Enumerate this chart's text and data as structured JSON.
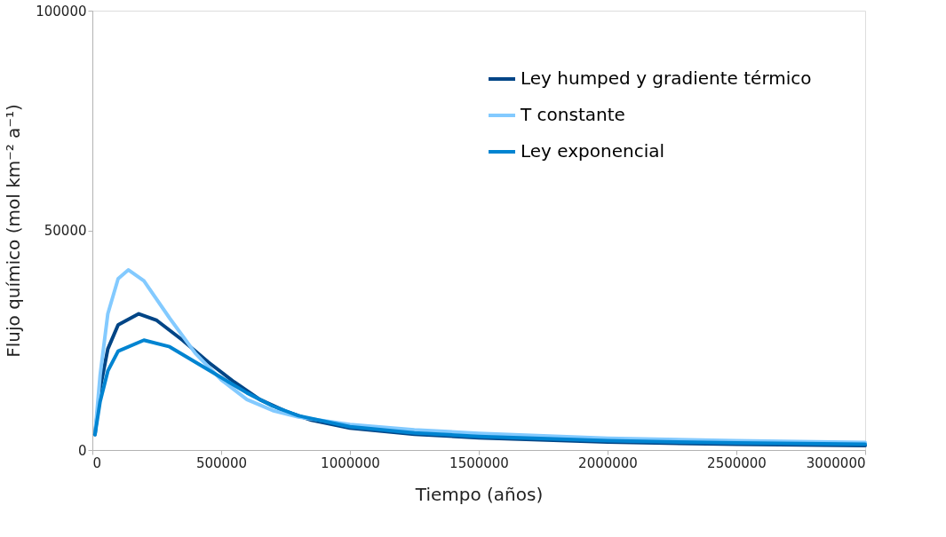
{
  "chart_data": {
    "type": "line",
    "xlabel": "Tiempo (años)",
    "ylabel": "Flujo químico (mol km⁻² a⁻¹)",
    "xlim": [
      0,
      3000000
    ],
    "ylim": [
      0,
      100000
    ],
    "xticks": [
      0,
      500000,
      1000000,
      1500000,
      2000000,
      2500000,
      3000000
    ],
    "yticks": [
      0,
      50000,
      100000
    ],
    "grid": false,
    "legend": "top right",
    "marker": "none",
    "line_style": "solid",
    "series": [
      {
        "name": "Ley humped y gradiente térmico",
        "color": "#004586",
        "x": [
          10000,
          30000,
          60000,
          100000,
          180000,
          250000,
          350000,
          450000,
          550000,
          650000,
          750000,
          850000,
          1000000,
          1250000,
          1500000,
          2000000,
          2500000,
          3000000
        ],
        "values": [
          3500,
          14000,
          23000,
          28500,
          31000,
          29500,
          25000,
          20000,
          15500,
          11500,
          8800,
          6800,
          5000,
          3600,
          2800,
          1800,
          1300,
          1000
        ]
      },
      {
        "name": "T constante",
        "color": "#83caff",
        "x": [
          10000,
          30000,
          60000,
          100000,
          140000,
          200000,
          300000,
          400000,
          500000,
          600000,
          700000,
          800000,
          1000000,
          1250000,
          1500000,
          2000000,
          2500000,
          3000000
        ],
        "values": [
          3500,
          17000,
          31000,
          39000,
          41000,
          38500,
          30000,
          22000,
          16000,
          11500,
          9000,
          7500,
          5800,
          4600,
          3800,
          2700,
          2100,
          1700
        ]
      },
      {
        "name": "Ley exponencial",
        "color": "#0084d1",
        "x": [
          10000,
          30000,
          60000,
          100000,
          200000,
          300000,
          400000,
          500000,
          600000,
          700000,
          800000,
          1000000,
          1250000,
          1500000,
          2000000,
          2500000,
          3000000
        ],
        "values": [
          3500,
          11000,
          18000,
          22500,
          25000,
          23500,
          20000,
          16500,
          13000,
          10000,
          7800,
          5300,
          3900,
          3100,
          2100,
          1600,
          1300
        ]
      }
    ]
  }
}
